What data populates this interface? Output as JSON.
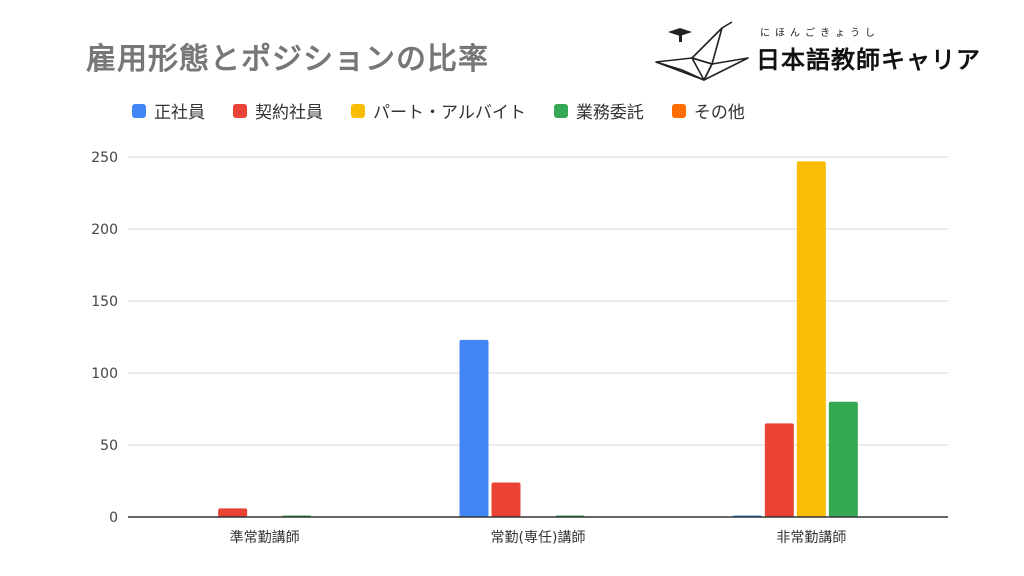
{
  "chart_data": {
    "type": "bar",
    "title": "雇用形態とポジションの比率",
    "categories": [
      "準常勤講師",
      "常勤(専任)講師",
      "非常勤講師"
    ],
    "series": [
      {
        "name": "正社員",
        "color": "#4285F4",
        "values": [
          0,
          123,
          1
        ]
      },
      {
        "name": "契約社員",
        "color": "#EA4335",
        "values": [
          6,
          24,
          65
        ]
      },
      {
        "name": "パート・アルバイト",
        "color": "#FBBC04",
        "values": [
          0,
          0,
          247
        ]
      },
      {
        "name": "業務委託",
        "color": "#34A853",
        "values": [
          1,
          1,
          80
        ]
      },
      {
        "name": "その他",
        "color": "#FF6D01",
        "values": [
          0,
          0,
          0
        ]
      }
    ],
    "yticks": [
      0,
      50,
      100,
      150,
      200,
      250
    ],
    "ylim": [
      0,
      250
    ],
    "grid": true,
    "legend": "top"
  },
  "brand": {
    "name": "日本語教師キャリア",
    "ruby": "にほんごきょうし"
  }
}
